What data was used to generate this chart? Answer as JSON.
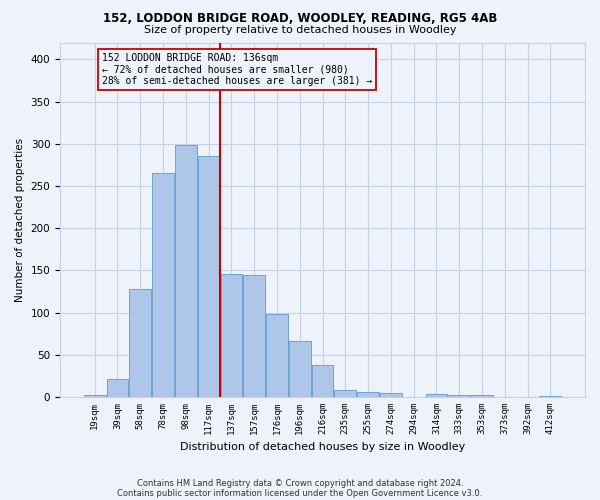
{
  "title1": "152, LODDON BRIDGE ROAD, WOODLEY, READING, RG5 4AB",
  "title2": "Size of property relative to detached houses in Woodley",
  "xlabel": "Distribution of detached houses by size in Woodley",
  "ylabel": "Number of detached properties",
  "footer1": "Contains HM Land Registry data © Crown copyright and database right 2024.",
  "footer2": "Contains public sector information licensed under the Open Government Licence v3.0.",
  "annotation_line1": "152 LODDON BRIDGE ROAD: 136sqm",
  "annotation_line2": "← 72% of detached houses are smaller (980)",
  "annotation_line3": "28% of semi-detached houses are larger (381) →",
  "bar_labels": [
    "19sqm",
    "39sqm",
    "58sqm",
    "78sqm",
    "98sqm",
    "117sqm",
    "137sqm",
    "157sqm",
    "176sqm",
    "196sqm",
    "216sqm",
    "235sqm",
    "255sqm",
    "274sqm",
    "294sqm",
    "314sqm",
    "333sqm",
    "353sqm",
    "373sqm",
    "392sqm",
    "412sqm"
  ],
  "bar_heights": [
    2,
    21,
    128,
    265,
    298,
    285,
    146,
    144,
    98,
    66,
    38,
    8,
    6,
    5,
    0,
    4,
    3,
    2,
    0,
    0,
    1
  ],
  "bar_color": "#aec6e8",
  "bar_edge_color": "#5b9bd5",
  "vline_x_index": 6,
  "vline_color": "#cc0000",
  "annotation_box_color": "#cc0000",
  "bg_color": "#eef2fb",
  "grid_color": "#c8d0e8",
  "ylim": [
    0,
    420
  ],
  "yticks": [
    0,
    50,
    100,
    150,
    200,
    250,
    300,
    350,
    400
  ]
}
